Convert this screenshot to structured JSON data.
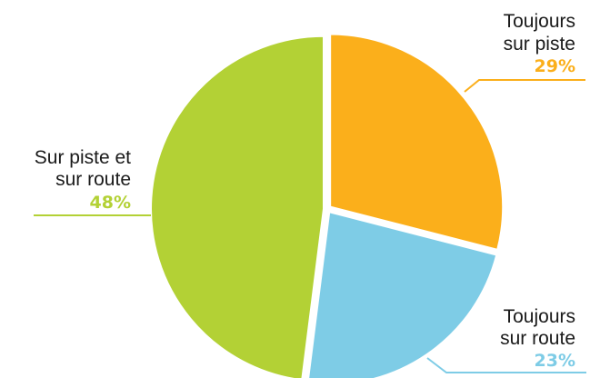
{
  "chart_data": {
    "type": "pie",
    "slices": [
      {
        "label_lines": [
          "Toujours",
          "sur piste"
        ],
        "value": 29,
        "value_label": "29%",
        "color": "#FBAF1B"
      },
      {
        "label_lines": [
          "Toujours",
          "sur route"
        ],
        "value": 23,
        "value_label": "23%",
        "color": "#7ECCE6"
      },
      {
        "label_lines": [
          "Sur piste et",
          "sur route"
        ],
        "value": 48,
        "value_label": "48%",
        "color": "#B3D135"
      }
    ]
  }
}
